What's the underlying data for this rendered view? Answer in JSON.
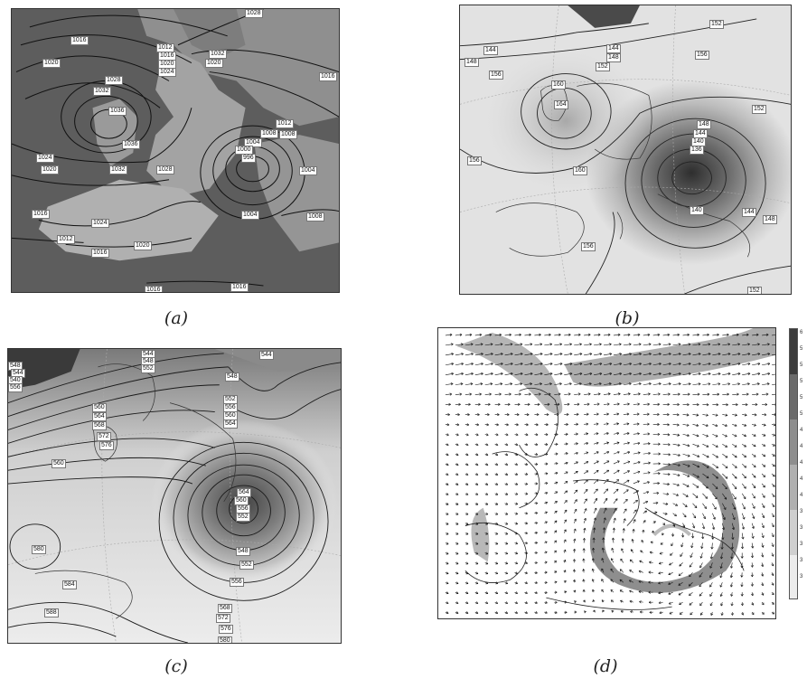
{
  "panels": [
    {
      "id": "a",
      "caption": "(a)",
      "labels": [
        "1028",
        "1016",
        "1012",
        "1016",
        "1020",
        "1024",
        "1020",
        "1028",
        "1032",
        "1032",
        "1036",
        "1036",
        "1032",
        "1028",
        "1020",
        "1016",
        "1012",
        "1008",
        "1004",
        "1000",
        "996",
        "1008",
        "1004",
        "1024",
        "1020",
        "1016",
        "1024",
        "1012",
        "1016",
        "1020",
        "1004",
        "1008",
        "1016",
        "1016"
      ]
    },
    {
      "id": "b",
      "caption": "(b)",
      "labels": [
        "152",
        "144",
        "148",
        "144",
        "148",
        "152",
        "156",
        "156",
        "160",
        "164",
        "160",
        "156",
        "152",
        "148",
        "144",
        "140",
        "136",
        "140",
        "144",
        "148",
        "156",
        "152"
      ]
    },
    {
      "id": "c",
      "caption": "(c)",
      "labels": [
        "544",
        "548",
        "552",
        "548",
        "544",
        "540",
        "556",
        "560",
        "564",
        "568",
        "572",
        "576",
        "544",
        "548",
        "552",
        "556",
        "560",
        "564",
        "580",
        "560",
        "564",
        "560",
        "556",
        "552",
        "548",
        "552",
        "584",
        "588",
        "556",
        "568",
        "572",
        "576",
        "580"
      ]
    },
    {
      "id": "d",
      "caption": "(d)",
      "scale_ticks": [
        "6",
        "5",
        "5",
        "5",
        "5",
        "5",
        "4",
        "4",
        "4",
        "4",
        "4",
        "3",
        "3",
        "3",
        "3",
        "3"
      ]
    }
  ]
}
